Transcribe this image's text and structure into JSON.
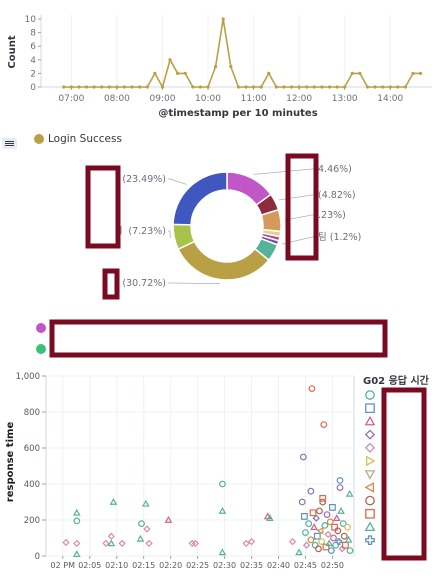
{
  "line_chart": {
    "chart_data": {
      "type": "line",
      "ylabel": "Count",
      "xlabel": "@timestamp per 10 minutes",
      "ylim": [
        0,
        10
      ],
      "y_ticks": [
        0,
        2,
        4,
        6,
        8,
        10
      ],
      "x_ticks": [
        "07:00",
        "08:00",
        "09:00",
        "10:00",
        "11:00",
        "12:00",
        "13:00",
        "14:00"
      ],
      "color": "#b9a044",
      "series": [
        {
          "name": "",
          "x": [
            "06:50",
            "07:00",
            "07:10",
            "07:20",
            "07:30",
            "07:40",
            "07:50",
            "08:00",
            "08:10",
            "08:20",
            "08:30",
            "08:40",
            "08:50",
            "09:00",
            "09:10",
            "09:20",
            "09:30",
            "09:40",
            "09:50",
            "10:00",
            "10:10",
            "10:20",
            "10:30",
            "10:40",
            "10:50",
            "11:00",
            "11:10",
            "11:20",
            "11:30",
            "11:40",
            "11:50",
            "12:00",
            "12:10",
            "12:20",
            "12:30",
            "12:40",
            "12:50",
            "13:00",
            "13:10",
            "13:20",
            "13:30",
            "13:40",
            "13:50",
            "14:00",
            "14:10",
            "14:20",
            "14:30",
            "14:40"
          ],
          "values": [
            0,
            0,
            0,
            0,
            0,
            0,
            0,
            0,
            0,
            0,
            0,
            0,
            2,
            0,
            4,
            2,
            2,
            0,
            0,
            0,
            3,
            10,
            3,
            0,
            0,
            0,
            0,
            2,
            0,
            0,
            0,
            0,
            0,
            0,
            0,
            0,
            0,
            0,
            2,
            2,
            0,
            0,
            0,
            0,
            0,
            0,
            2,
            2
          ]
        }
      ]
    }
  },
  "legend": {
    "toggle_icon": "list-icon",
    "login_success": {
      "label": "Login Success",
      "color": "#b9a044"
    }
  },
  "donut": {
    "chart_data": {
      "type": "pie",
      "slice_colors": [
        "#c157c6",
        "#8f2b3e",
        "#d49a5b",
        "#e8cf8a",
        "#b64a8a",
        "#6b4fb0",
        "#54b399",
        "#b9a044",
        "#a8c24a",
        "#4057bf"
      ],
      "slices": [
        {
          "label": "",
          "percent": 14.46
        },
        {
          "label": "",
          "percent": 4.82
        },
        {
          "label": "",
          "percent": 6.23
        },
        {
          "label": "",
          "percent": 1.5
        },
        {
          "label": "",
          "percent": 1.2
        },
        {
          "label": "",
          "percent": 1.2
        },
        {
          "label": "",
          "percent": 5.0
        },
        {
          "label": "",
          "percent": 30.72
        },
        {
          "label": "",
          "percent": 7.23
        },
        {
          "label": "",
          "percent": 23.49
        }
      ],
      "callouts": [
        {
          "text": "(23.49%)",
          "side": "left",
          "slice": 9
        },
        {
          "text": "ㅣ (7.23%)",
          "side": "left",
          "slice": 8
        },
        {
          "text": "(30.72%)",
          "side": "left",
          "slice": 7
        },
        {
          "text": "4.46%)",
          "side": "right",
          "slice": 0
        },
        {
          "text": "(4.82%)",
          "side": "right",
          "slice": 1
        },
        {
          "text": ".23%)",
          "side": "right",
          "slice": 2
        },
        {
          "text": "팀 (1.2%)",
          "side": "right",
          "slice": 5
        }
      ]
    }
  },
  "legend_rows": [
    {
      "color": "#c157c6"
    },
    {
      "color": "#3dbf7a"
    }
  ],
  "scatter": {
    "chart_data": {
      "type": "scatter",
      "ylabel": "response time",
      "ylim": [
        0,
        1000
      ],
      "y_ticks": [
        "0",
        "200",
        "400",
        "600",
        "800",
        "1,000"
      ],
      "x_ticks": [
        "02 PM",
        "02:05",
        "02:10",
        "02:15",
        "02:20",
        "02:25",
        "02:30",
        "02:35",
        "02:40",
        "02:45",
        "02:50"
      ],
      "legend_title": "G02 응답 시간",
      "legend_markers": [
        {
          "shape": "circle",
          "color": "#54b399"
        },
        {
          "shape": "square",
          "color": "#6092c0"
        },
        {
          "shape": "triangle",
          "color": "#d36086"
        },
        {
          "shape": "diamond",
          "color": "#9170b8"
        },
        {
          "shape": "diamond",
          "color": "#ca8eae"
        },
        {
          "shape": "triangle-right",
          "color": "#d6bf57"
        },
        {
          "shape": "triangle-down",
          "color": "#b9a888"
        },
        {
          "shape": "triangle-left",
          "color": "#da8b45"
        },
        {
          "shape": "circle",
          "color": "#aa6556"
        },
        {
          "shape": "square",
          "color": "#e7664c"
        },
        {
          "shape": "triangle",
          "color": "#54b399"
        },
        {
          "shape": "cross",
          "color": "#6092c0"
        }
      ],
      "points": [
        {
          "x": 0.3,
          "y": 75,
          "shape": "diamond",
          "color": "#e08aa0"
        },
        {
          "x": 1.3,
          "y": 240,
          "shape": "triangle",
          "color": "#54b399"
        },
        {
          "x": 1.3,
          "y": 195,
          "shape": "circle",
          "color": "#54b399"
        },
        {
          "x": 1.3,
          "y": 70,
          "shape": "diamond",
          "color": "#e08aa0"
        },
        {
          "x": 1.3,
          "y": 10,
          "shape": "triangle",
          "color": "#54b399"
        },
        {
          "x": 4.0,
          "y": 70,
          "shape": "diamond",
          "color": "#e08aa0"
        },
        {
          "x": 4.5,
          "y": 110,
          "shape": "diamond",
          "color": "#e08aa0"
        },
        {
          "x": 4.5,
          "y": 70,
          "shape": "triangle",
          "color": "#54b399"
        },
        {
          "x": 4.7,
          "y": 300,
          "shape": "triangle",
          "color": "#54b399"
        },
        {
          "x": 5.5,
          "y": 70,
          "shape": "diamond",
          "color": "#e08aa0"
        },
        {
          "x": 7.2,
          "y": 95,
          "shape": "triangle",
          "color": "#54b399"
        },
        {
          "x": 7.3,
          "y": 180,
          "shape": "circle",
          "color": "#54b399"
        },
        {
          "x": 7.7,
          "y": 290,
          "shape": "triangle",
          "color": "#54b399"
        },
        {
          "x": 7.8,
          "y": 150,
          "shape": "diamond",
          "color": "#e08aa0"
        },
        {
          "x": 8.0,
          "y": 70,
          "shape": "diamond",
          "color": "#e08aa0"
        },
        {
          "x": 9.8,
          "y": 200,
          "shape": "triangle",
          "color": "#d36086"
        },
        {
          "x": 12.0,
          "y": 70,
          "shape": "diamond",
          "color": "#e08aa0"
        },
        {
          "x": 12.3,
          "y": 70,
          "shape": "diamond",
          "color": "#e08aa0"
        },
        {
          "x": 14.8,
          "y": 400,
          "shape": "circle",
          "color": "#54b399"
        },
        {
          "x": 14.8,
          "y": 250,
          "shape": "triangle",
          "color": "#54b399"
        },
        {
          "x": 14.8,
          "y": 20,
          "shape": "triangle",
          "color": "#54b399"
        },
        {
          "x": 17.0,
          "y": 70,
          "shape": "diamond",
          "color": "#e08aa0"
        },
        {
          "x": 17.5,
          "y": 80,
          "shape": "diamond",
          "color": "#e08aa0"
        },
        {
          "x": 19.0,
          "y": 220,
          "shape": "triangle",
          "color": "#d36086"
        },
        {
          "x": 19.2,
          "y": 210,
          "shape": "triangle",
          "color": "#54b399"
        },
        {
          "x": 21.3,
          "y": 80,
          "shape": "diamond",
          "color": "#e08aa0"
        },
        {
          "x": 21.9,
          "y": 20,
          "shape": "triangle",
          "color": "#54b399"
        },
        {
          "x": 22.2,
          "y": 300,
          "shape": "circle",
          "color": "#9170b8"
        },
        {
          "x": 22.3,
          "y": 550,
          "shape": "circle",
          "color": "#9170b8"
        },
        {
          "x": 22.4,
          "y": 220,
          "shape": "square",
          "color": "#6092c0"
        },
        {
          "x": 22.5,
          "y": 130,
          "shape": "circle",
          "color": "#54b399"
        },
        {
          "x": 22.6,
          "y": 60,
          "shape": "diamond",
          "color": "#ca8eae"
        },
        {
          "x": 22.8,
          "y": 180,
          "shape": "circle",
          "color": "#54b399"
        },
        {
          "x": 23.0,
          "y": 360,
          "shape": "circle",
          "color": "#9170b8"
        },
        {
          "x": 23.0,
          "y": 90,
          "shape": "circle",
          "color": "#da8b45"
        },
        {
          "x": 23.1,
          "y": 930,
          "shape": "circle",
          "color": "#e7664c"
        },
        {
          "x": 23.2,
          "y": 240,
          "shape": "square",
          "color": "#e7664c"
        },
        {
          "x": 23.3,
          "y": 160,
          "shape": "triangle",
          "color": "#d36086"
        },
        {
          "x": 23.4,
          "y": 60,
          "shape": "circle",
          "color": "#54b399"
        },
        {
          "x": 23.5,
          "y": 210,
          "shape": "diamond",
          "color": "#9170b8"
        },
        {
          "x": 23.6,
          "y": 110,
          "shape": "square",
          "color": "#6092c0"
        },
        {
          "x": 23.7,
          "y": 40,
          "shape": "circle",
          "color": "#aa6556"
        },
        {
          "x": 23.8,
          "y": 250,
          "shape": "circle",
          "color": "#aa6556"
        },
        {
          "x": 23.9,
          "y": 140,
          "shape": "triangle-left",
          "color": "#da8b45"
        },
        {
          "x": 24.0,
          "y": 80,
          "shape": "circle",
          "color": "#d6bf57"
        },
        {
          "x": 24.1,
          "y": 300,
          "shape": "circle",
          "color": "#aa6556"
        },
        {
          "x": 24.1,
          "y": 320,
          "shape": "square",
          "color": "#e7664c"
        },
        {
          "x": 24.2,
          "y": 730,
          "shape": "circle",
          "color": "#e7664c"
        },
        {
          "x": 24.3,
          "y": 170,
          "shape": "circle",
          "color": "#54b399"
        },
        {
          "x": 24.4,
          "y": 50,
          "shape": "square",
          "color": "#e7664c"
        },
        {
          "x": 24.5,
          "y": 230,
          "shape": "circle",
          "color": "#9170b8"
        },
        {
          "x": 24.6,
          "y": 120,
          "shape": "diamond",
          "color": "#ca8eae"
        },
        {
          "x": 24.7,
          "y": 70,
          "shape": "triangle",
          "color": "#54b399"
        },
        {
          "x": 24.8,
          "y": 190,
          "shape": "circle",
          "color": "#da8b45"
        },
        {
          "x": 24.9,
          "y": 30,
          "shape": "circle",
          "color": "#6092c0"
        },
        {
          "x": 25.0,
          "y": 270,
          "shape": "square",
          "color": "#6092c0"
        },
        {
          "x": 25.1,
          "y": 100,
          "shape": "circle",
          "color": "#d36086"
        },
        {
          "x": 25.2,
          "y": 160,
          "shape": "square",
          "color": "#e7664c"
        },
        {
          "x": 25.3,
          "y": 60,
          "shape": "circle",
          "color": "#54b399"
        },
        {
          "x": 25.4,
          "y": 210,
          "shape": "triangle",
          "color": "#d36086"
        },
        {
          "x": 25.5,
          "y": 140,
          "shape": "circle",
          "color": "#aa6556"
        },
        {
          "x": 25.6,
          "y": 80,
          "shape": "cross",
          "color": "#6092c0"
        },
        {
          "x": 25.7,
          "y": 420,
          "shape": "circle",
          "color": "#6092c0"
        },
        {
          "x": 25.7,
          "y": 380,
          "shape": "circle",
          "color": "#9170b8"
        },
        {
          "x": 25.8,
          "y": 250,
          "shape": "triangle",
          "color": "#54b399"
        },
        {
          "x": 25.9,
          "y": 40,
          "shape": "diamond",
          "color": "#ca8eae"
        },
        {
          "x": 26.0,
          "y": 180,
          "shape": "circle",
          "color": "#54b399"
        },
        {
          "x": 26.1,
          "y": 110,
          "shape": "circle",
          "color": "#aa6556"
        },
        {
          "x": 26.2,
          "y": 60,
          "shape": "square",
          "color": "#e7664c"
        },
        {
          "x": 26.4,
          "y": 160,
          "shape": "circle",
          "color": "#d6bf57"
        },
        {
          "x": 26.5,
          "y": 90,
          "shape": "triangle",
          "color": "#54b399"
        },
        {
          "x": 26.6,
          "y": 345,
          "shape": "triangle",
          "color": "#54b399"
        },
        {
          "x": 26.7,
          "y": 30,
          "shape": "circle",
          "color": "#54b399"
        }
      ]
    }
  },
  "redactions": [
    {
      "name": "donut-left-labels-redaction"
    },
    {
      "name": "donut-bottom-label-redaction"
    },
    {
      "name": "donut-right-labels-redaction"
    },
    {
      "name": "legend-rows-redaction"
    },
    {
      "name": "scatter-legend-labels-redaction"
    }
  ]
}
